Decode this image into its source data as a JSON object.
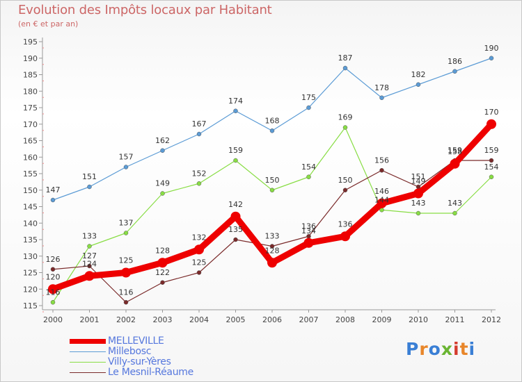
{
  "title": "Evolution des Impôts locaux par Habitant",
  "subtitle": "(en € et par an)",
  "logo": {
    "text": "Proxiti",
    "colors": [
      "#3a7fd5",
      "#e8862a",
      "#3a7fd5",
      "#6ab532",
      "#d43c2f",
      "#e8862a",
      "#3a7fd5"
    ]
  },
  "chart_data": {
    "type": "line",
    "title": "Evolution des Impôts locaux par Habitant",
    "subtitle": "(en € et par an)",
    "x": [
      "2000",
      "2001",
      "2002",
      "2003",
      "2004",
      "2005",
      "2006",
      "2007",
      "2008",
      "2009",
      "2010",
      "2011",
      "2012"
    ],
    "ylim": [
      115,
      195
    ],
    "yticks": [
      115,
      120,
      125,
      130,
      135,
      140,
      145,
      150,
      155,
      160,
      165,
      170,
      175,
      180,
      185,
      190,
      195
    ],
    "grid": false,
    "legend_position": "bottom-left",
    "series": [
      {
        "name": "MELLEVILLE",
        "color": "#ee0000",
        "values": [
          120,
          124,
          125,
          128,
          132,
          142,
          128,
          134,
          136,
          146,
          149,
          158,
          170
        ]
      },
      {
        "name": "Millebosc",
        "color": "#5b9bd5",
        "values": [
          147,
          151,
          157,
          162,
          167,
          174,
          168,
          175,
          187,
          178,
          182,
          186,
          190
        ]
      },
      {
        "name": "Villy-sur-Yères",
        "color": "#88dd44",
        "values": [
          116,
          133,
          137,
          149,
          152,
          159,
          150,
          154,
          169,
          144,
          143,
          143,
          154
        ]
      },
      {
        "name": "Le Mesnil-Réaume",
        "color": "#7a2a2a",
        "values": [
          126,
          127,
          116,
          122,
          125,
          135,
          133,
          136,
          150,
          156,
          151,
          159,
          159
        ]
      }
    ]
  }
}
